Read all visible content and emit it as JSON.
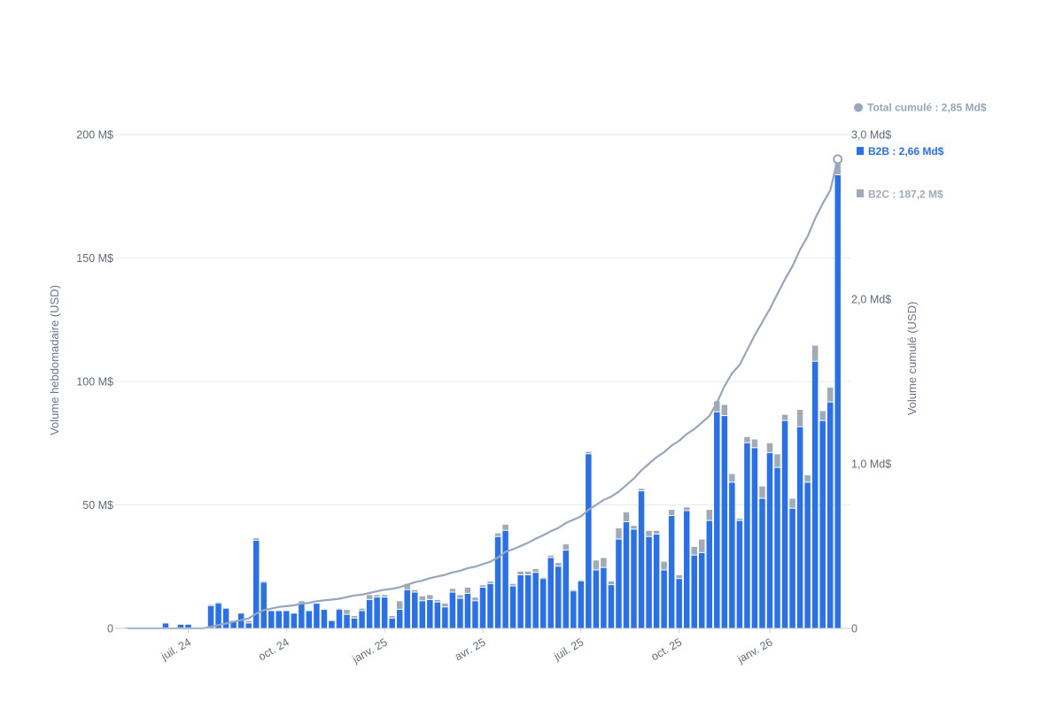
{
  "chart_data": {
    "type": "bar",
    "stacked": true,
    "colors": {
      "b2b": "#2970ed",
      "b2c": "#a0aab8",
      "cumulative": "#97a6bd",
      "grid": "#e8ebef",
      "axis": "#5f6b7a"
    },
    "y_left": {
      "label": "Volume hebdomadaire (USD)",
      "range": [
        0,
        200
      ],
      "ticks": [
        {
          "value": 0,
          "label": "0"
        },
        {
          "value": 50,
          "label": "50 M$"
        },
        {
          "value": 100,
          "label": "100 M$"
        },
        {
          "value": 150,
          "label": "150 M$"
        },
        {
          "value": 200,
          "label": "200 M$"
        }
      ]
    },
    "y_right": {
      "label": "Volume cumulé (USD)",
      "range": [
        0,
        3.0
      ],
      "ticks": [
        {
          "value": 0,
          "label": "0"
        },
        {
          "value": 1.0,
          "label": "1,0 Md$"
        },
        {
          "value": 2.0,
          "label": "2,0 Md$"
        },
        {
          "value": 3.0,
          "label": "3,0 Md$"
        }
      ]
    },
    "x_ticks": [
      {
        "week": 8,
        "label": "juil. 24"
      },
      {
        "week": 21,
        "label": "oct. 24"
      },
      {
        "week": 34,
        "label": "janv. 25"
      },
      {
        "week": 47,
        "label": "avr. 25"
      },
      {
        "week": 60,
        "label": "juil. 25"
      },
      {
        "week": 73,
        "label": "oct. 25"
      },
      {
        "week": 85,
        "label": "janv. 26"
      }
    ],
    "legend": {
      "placement": "right",
      "items": [
        {
          "key": "cumulative",
          "label": "Total cumulé : 2,85 Md$"
        },
        {
          "key": "b2b",
          "label": "B2B : 2,66 Md$"
        },
        {
          "key": "b2c",
          "label": "B2C : 187,2 M$"
        }
      ]
    },
    "series": [
      {
        "name": "B2B",
        "values": [
          0.3,
          0.3,
          0.3,
          0.3,
          0.3,
          2,
          0.3,
          1.5,
          1.5,
          0.3,
          0.3,
          9,
          10,
          8,
          3,
          6,
          2,
          35.5,
          18.5,
          7,
          7,
          7,
          6,
          10,
          7,
          10,
          7.5,
          3,
          7.5,
          5.5,
          4,
          7,
          11.5,
          12.5,
          12.5,
          4,
          7.5,
          15.5,
          14.5,
          11,
          11.5,
          10.5,
          8.5,
          14.5,
          12,
          14,
          11,
          16.5,
          18,
          37,
          39.5,
          17,
          21.5,
          21.5,
          22.5,
          20,
          28.5,
          25,
          31.5,
          15,
          19,
          70.5,
          23.5,
          24.5,
          17.5,
          36,
          43,
          40,
          55.5,
          37,
          38,
          23.5,
          45.5,
          20,
          47.5,
          29.5,
          30.5,
          43.5,
          87.5,
          86,
          59,
          43.5,
          75,
          73,
          52.5,
          71,
          65,
          84,
          48.5,
          81.5,
          59,
          108,
          84,
          91.5,
          183.5
        ]
      },
      {
        "name": "B2C",
        "values": [
          0,
          0,
          0,
          0,
          0,
          0,
          0,
          0,
          0,
          0,
          0,
          0.5,
          0.5,
          0,
          0,
          0,
          1,
          1,
          0.5,
          0,
          0,
          0,
          0,
          1,
          0,
          0,
          0,
          0,
          0.5,
          2,
          1,
          1,
          2,
          1,
          1,
          1,
          3.5,
          2.5,
          1,
          2,
          2,
          1,
          1.5,
          1.5,
          1.5,
          2.5,
          1.5,
          1,
          1,
          1.5,
          2.5,
          1,
          1.5,
          1.5,
          1.5,
          0.5,
          1,
          1.5,
          2.5,
          0.5,
          0.5,
          1,
          4,
          4,
          1.5,
          4.5,
          4,
          1.5,
          1,
          2.5,
          1.5,
          3.5,
          2.5,
          1.5,
          1.5,
          3.5,
          5.5,
          4.5,
          4.5,
          4.5,
          3.5,
          1,
          2.5,
          3.5,
          5,
          4,
          5.5,
          2.5,
          4,
          7,
          3,
          6.5,
          4,
          6,
          6.5
        ]
      }
    ],
    "cumulative": {
      "name": "Total cumulé",
      "values_md": [
        0,
        0,
        0,
        0,
        0,
        0,
        0,
        0,
        0,
        0,
        0,
        0.01,
        0.02,
        0.03,
        0.04,
        0.05,
        0.06,
        0.09,
        0.11,
        0.12,
        0.13,
        0.135,
        0.14,
        0.15,
        0.155,
        0.165,
        0.17,
        0.175,
        0.18,
        0.19,
        0.2,
        0.205,
        0.215,
        0.225,
        0.235,
        0.24,
        0.25,
        0.265,
        0.28,
        0.29,
        0.305,
        0.315,
        0.325,
        0.34,
        0.35,
        0.365,
        0.375,
        0.39,
        0.405,
        0.43,
        0.465,
        0.48,
        0.5,
        0.52,
        0.545,
        0.565,
        0.59,
        0.61,
        0.64,
        0.66,
        0.68,
        0.72,
        0.75,
        0.78,
        0.8,
        0.83,
        0.87,
        0.91,
        0.96,
        1.0,
        1.04,
        1.07,
        1.11,
        1.14,
        1.18,
        1.21,
        1.25,
        1.29,
        1.37,
        1.47,
        1.55,
        1.6,
        1.69,
        1.78,
        1.86,
        1.94,
        2.03,
        2.12,
        2.2,
        2.3,
        2.38,
        2.49,
        2.58,
        2.66,
        2.85
      ]
    }
  }
}
